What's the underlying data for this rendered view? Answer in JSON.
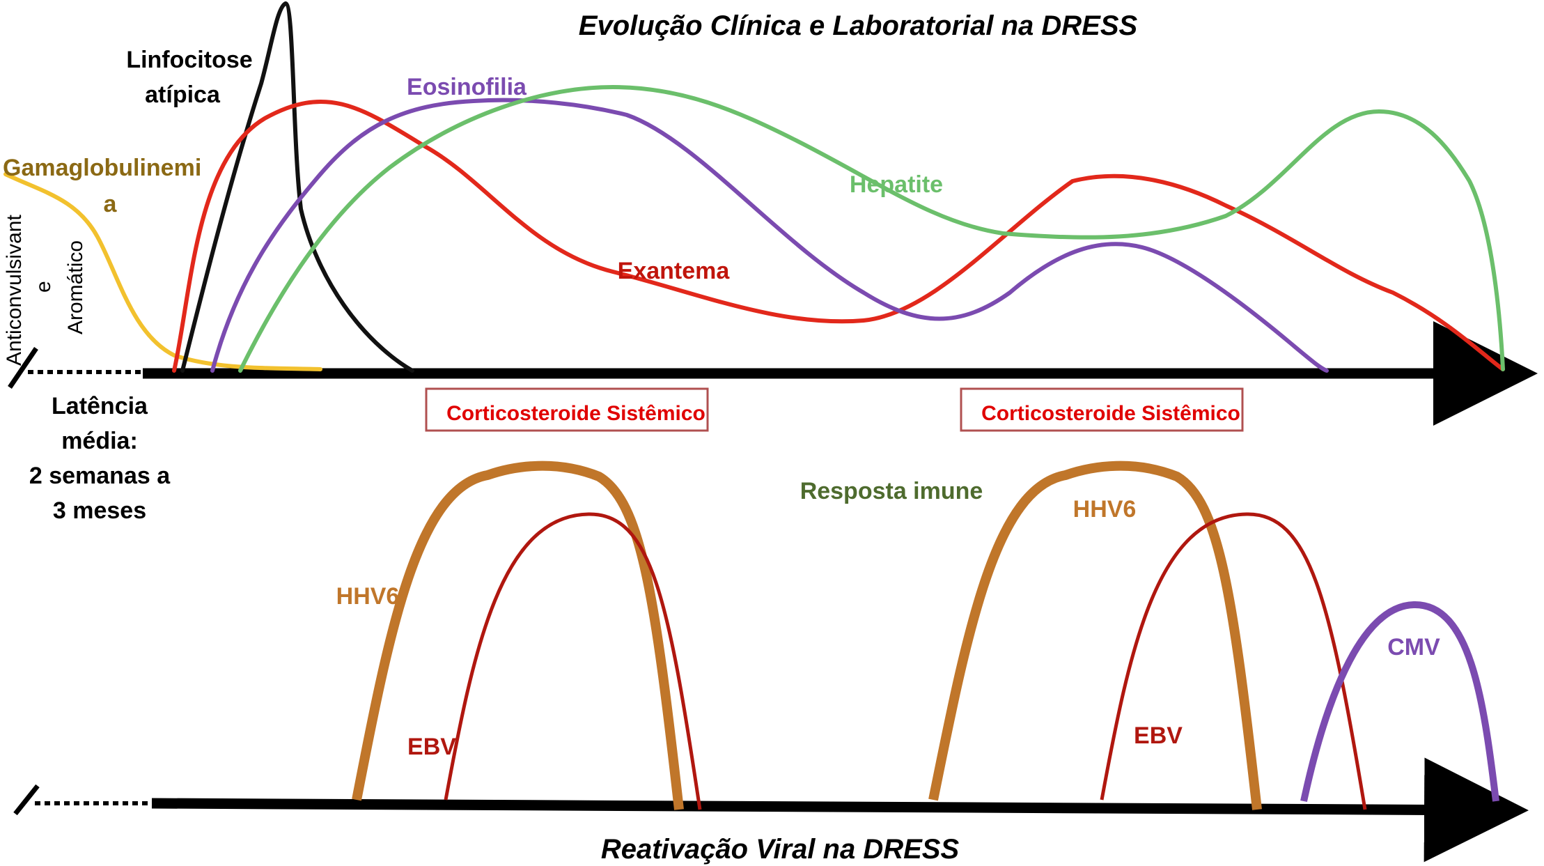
{
  "top_title": "Evolução Clínica e Laboratorial na DRESS",
  "bottom_title": "Reativação Viral na DRESS",
  "side_label": {
    "line1": "Anticonvulsivant",
    "line2": "e",
    "line3": "Aromático"
  },
  "latency": {
    "line1": "Latência",
    "line2": "média:",
    "line3": "2 semanas a",
    "line4": "3 meses"
  },
  "clinical_curves": {
    "gamaglobulinemia": {
      "label_1": "Gamaglobulinemi",
      "label_2": "a",
      "color": "#F2C12E"
    },
    "linfocitose": {
      "label_1": "Linfocitose",
      "label_2": "atípica",
      "color": "#111111"
    },
    "exantema": {
      "label": "Exantema",
      "color": "#E2281B"
    },
    "eosinofilia": {
      "label": "Eosinofilia",
      "color": "#7B4BB0"
    },
    "hepatite": {
      "label": "Hepatite",
      "color": "#6BBF6B"
    }
  },
  "treatment_boxes": [
    {
      "label": "Corticosteroide Sistêmico",
      "color": "#E00000"
    },
    {
      "label": "Corticosteroide Sistêmico",
      "color": "#E00000"
    }
  ],
  "immune_label": {
    "text": "Resposta imune",
    "color": "#4E6B2E"
  },
  "viral_curves": {
    "hhv6_1": {
      "label": "HHV6",
      "color": "#C0762A"
    },
    "ebv_1": {
      "label": "EBV",
      "color": "#B0170F"
    },
    "hhv6_2": {
      "label": "HHV6",
      "color": "#C0762A"
    },
    "ebv_2": {
      "label": "EBV",
      "color": "#B0170F"
    },
    "cmv": {
      "label": "CMV",
      "color": "#7B4BB0"
    }
  },
  "axis_color": "#000000"
}
